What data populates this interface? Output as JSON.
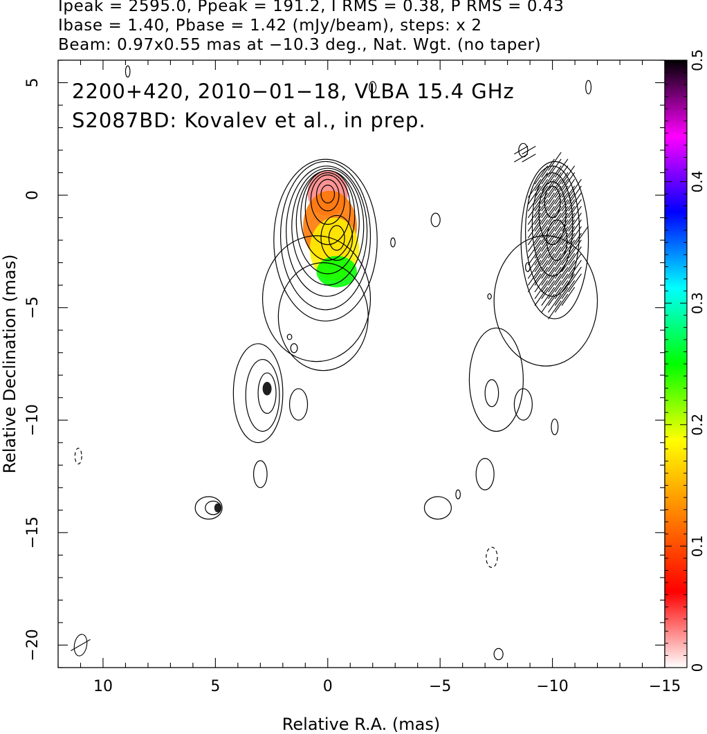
{
  "header": {
    "line1": "Ipeak = 2595.0, Ppeak = 191.2, I RMS = 0.38, P RMS = 0.43",
    "line2": "Ibase = 1.40, Pbase = 1.42 (mJy/beam), steps: x 2",
    "line3": "Beam: 0.97x0.55 mas at −10.3 deg., Nat. Wgt. (no taper)"
  },
  "chart_data": {
    "type": "heatmap",
    "xlabel": "Relative R.A. (mas)",
    "ylabel": "Relative Declination (mas)",
    "xlim": [
      12,
      -15
    ],
    "ylim": [
      -21,
      6
    ],
    "xticks": [
      {
        "value": 10,
        "label": "10"
      },
      {
        "value": 5,
        "label": "5"
      },
      {
        "value": 0,
        "label": "0"
      },
      {
        "value": -5,
        "label": "−5"
      },
      {
        "value": -10,
        "label": "−10"
      },
      {
        "value": -15,
        "label": "−15"
      }
    ],
    "yticks": [
      {
        "value": 5,
        "label": "5"
      },
      {
        "value": 0,
        "label": "0"
      },
      {
        "value": -5,
        "label": "−5"
      },
      {
        "value": -10,
        "label": "−10"
      },
      {
        "value": -15,
        "label": "−15"
      },
      {
        "value": -20,
        "label": "−20"
      }
    ],
    "annotations": {
      "line1": "2200+420, 2010−01−18, VLBA 15.4 GHz",
      "line2": "S2087BD: Kovalev et al., in prep."
    },
    "colorbar": {
      "min": 0,
      "max": 0.5,
      "colors": [
        "#ffffff",
        "#ff0000",
        "#ff8000",
        "#ffff00",
        "#00ff00",
        "#00ffff",
        "#0000ff",
        "#ff00ff",
        "#000000"
      ],
      "ticks": [
        {
          "value": 0,
          "label": "0"
        },
        {
          "value": 0.1,
          "label": "0.1"
        },
        {
          "value": 0.2,
          "label": "0.2"
        },
        {
          "value": 0.3,
          "label": "0.3"
        },
        {
          "value": 0.4,
          "label": "0.4"
        },
        {
          "value": 0.5,
          "label": "0.5"
        }
      ]
    },
    "fraction_blobs": [
      {
        "x": 0.0,
        "y": 0.1,
        "rx": 0.9,
        "ry": 1.0,
        "value": 0.03
      },
      {
        "x": -0.1,
        "y": -1.4,
        "rx": 1.2,
        "ry": 1.6,
        "value": 0.12
      },
      {
        "x": -0.3,
        "y": -2.4,
        "rx": 1.1,
        "ry": 1.4,
        "value": 0.18
      },
      {
        "x": -0.4,
        "y": -3.4,
        "rx": 0.9,
        "ry": 0.7,
        "value": 0.25
      },
      {
        "x": 2.7,
        "y": -8.6,
        "rx": 0.2,
        "ry": 0.3,
        "value": 0.5
      },
      {
        "x": 4.9,
        "y": -13.9,
        "rx": 0.15,
        "ry": 0.2,
        "value": 0.5
      }
    ],
    "contours_I": [
      {
        "x": 0.1,
        "y": -2.0,
        "rx": 2.3,
        "ry": 3.6
      },
      {
        "x": 0.1,
        "y": -1.8,
        "rx": 2.0,
        "ry": 3.3
      },
      {
        "x": 0.05,
        "y": -1.6,
        "rx": 1.8,
        "ry": 2.9
      },
      {
        "x": 0.0,
        "y": -1.4,
        "rx": 1.6,
        "ry": 2.6
      },
      {
        "x": 0.0,
        "y": -1.2,
        "rx": 1.4,
        "ry": 2.3
      },
      {
        "x": 0.0,
        "y": -0.9,
        "rx": 1.2,
        "ry": 2.0
      },
      {
        "x": 0.0,
        "y": -0.6,
        "rx": 1.0,
        "ry": 1.6
      },
      {
        "x": 0.0,
        "y": -0.2,
        "rx": 0.75,
        "ry": 1.1
      },
      {
        "x": 0.0,
        "y": 0.0,
        "rx": 0.5,
        "ry": 0.7
      },
      {
        "x": 0.0,
        "y": 0.05,
        "rx": 0.3,
        "ry": 0.4
      },
      {
        "x": -0.4,
        "y": -1.9,
        "rx": 0.7,
        "ry": 1.0
      },
      {
        "x": -0.4,
        "y": -1.9,
        "rx": 0.35,
        "ry": 0.55
      },
      {
        "x": 0.5,
        "y": -4.6,
        "rx": 2.4,
        "ry": 2.8
      },
      {
        "x": 0.2,
        "y": -5.4,
        "rx": 2.0,
        "ry": 2.4
      },
      {
        "x": 3.1,
        "y": -8.8,
        "rx": 1.1,
        "ry": 2.2
      },
      {
        "x": 2.9,
        "y": -8.9,
        "rx": 0.75,
        "ry": 1.6
      },
      {
        "x": 2.7,
        "y": -8.8,
        "rx": 0.4,
        "ry": 0.9
      },
      {
        "x": 1.3,
        "y": -9.3,
        "rx": 0.4,
        "ry": 0.7
      },
      {
        "x": 3.0,
        "y": -12.4,
        "rx": 0.3,
        "ry": 0.6
      },
      {
        "x": 5.3,
        "y": -13.9,
        "rx": 0.6,
        "ry": 0.5
      },
      {
        "x": 5.1,
        "y": -13.9,
        "rx": 0.35,
        "ry": 0.3
      },
      {
        "x": -10.1,
        "y": -2.0,
        "rx": 1.5,
        "ry": 3.5
      },
      {
        "x": -10.0,
        "y": -1.6,
        "rx": 1.2,
        "ry": 2.9
      },
      {
        "x": -10.0,
        "y": -1.3,
        "rx": 0.9,
        "ry": 2.3
      },
      {
        "x": -10.0,
        "y": -0.8,
        "rx": 0.6,
        "ry": 1.4
      },
      {
        "x": -10.0,
        "y": -0.3,
        "rx": 0.35,
        "ry": 0.7
      },
      {
        "x": -10.2,
        "y": -2.0,
        "rx": 0.45,
        "ry": 0.9
      },
      {
        "x": -9.7,
        "y": -4.7,
        "rx": 2.3,
        "ry": 2.9
      },
      {
        "x": -7.5,
        "y": -8.2,
        "rx": 1.2,
        "ry": 2.3
      },
      {
        "x": -7.3,
        "y": -8.8,
        "rx": 0.3,
        "ry": 0.6
      },
      {
        "x": -8.7,
        "y": -9.3,
        "rx": 0.4,
        "ry": 0.7
      },
      {
        "x": -7.0,
        "y": -12.4,
        "rx": 0.4,
        "ry": 0.7
      },
      {
        "x": -4.9,
        "y": -13.9,
        "rx": 0.6,
        "ry": 0.5
      },
      {
        "x": -10.1,
        "y": -10.3,
        "rx": 0.15,
        "ry": 0.35
      },
      {
        "x": -4.8,
        "y": -1.1,
        "rx": 0.2,
        "ry": 0.3
      },
      {
        "x": -2.9,
        "y": -2.1,
        "rx": 0.1,
        "ry": 0.2
      },
      {
        "x": 1.5,
        "y": -6.8,
        "rx": 0.15,
        "ry": 0.2
      },
      {
        "x": 1.7,
        "y": -6.3,
        "rx": 0.1,
        "ry": 0.12
      },
      {
        "x": 8.9,
        "y": 5.5,
        "rx": 0.1,
        "ry": 0.25
      },
      {
        "x": -2.0,
        "y": 4.8,
        "rx": 0.15,
        "ry": 0.25
      },
      {
        "x": -11.6,
        "y": 4.8,
        "rx": 0.12,
        "ry": 0.3
      },
      {
        "x": -8.7,
        "y": 2.0,
        "rx": 0.2,
        "ry": 0.3
      },
      {
        "x": -8.9,
        "y": -3.2,
        "rx": 0.1,
        "ry": 0.2
      },
      {
        "x": -7.2,
        "y": -4.5,
        "rx": 0.08,
        "ry": 0.12
      },
      {
        "x": -7.6,
        "y": -20.4,
        "rx": 0.2,
        "ry": 0.25
      },
      {
        "x": -5.8,
        "y": -13.3,
        "rx": 0.1,
        "ry": 0.2
      }
    ],
    "contours_negative": [
      {
        "x": 11.1,
        "y": -11.6,
        "rx": 0.15,
        "ry": 0.35
      },
      {
        "x": -7.3,
        "y": -16.1,
        "rx": 0.25,
        "ry": 0.45
      }
    ],
    "evpa_regions": [
      {
        "x": -10.1,
        "y": -1.8,
        "rx": 1.2,
        "ry": 3.3,
        "angle": 35,
        "length": 1.0,
        "spacing": 0.3
      },
      {
        "x": -7.4,
        "y": -8.8,
        "rx": 0.15,
        "ry": 0.5,
        "angle": 0,
        "length": 0.9,
        "spacing": 0.3
      },
      {
        "x": -8.9,
        "y": 1.8,
        "rx": 0.4,
        "ry": 0.5,
        "angle": 60,
        "length": 0.7,
        "spacing": 0.35
      },
      {
        "x": -5.1,
        "y": -13.8,
        "rx": 0.25,
        "ry": 0.25,
        "angle": 55,
        "length": 0.9,
        "spacing": 0.5
      },
      {
        "x": 11.0,
        "y": -20.0,
        "rx": 0.0,
        "ry": 0.0,
        "angle": 60,
        "length": 1.0,
        "spacing": 1.0
      }
    ],
    "beam": {
      "major": 0.97,
      "minor": 0.55,
      "pa_deg": -10.3
    }
  }
}
